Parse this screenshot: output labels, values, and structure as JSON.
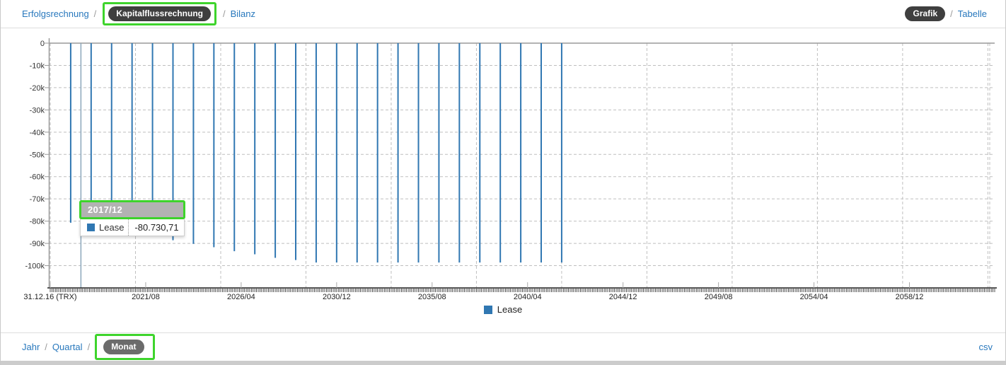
{
  "nav": {
    "separator": "/",
    "items": [
      {
        "label": "Erfolgsrechnung",
        "active": false
      },
      {
        "label": "Kapitalflussrechnung",
        "active": true
      },
      {
        "label": "Bilanz",
        "active": false
      }
    ],
    "view_toggle": [
      {
        "label": "Grafik",
        "active": true
      },
      {
        "label": "Tabelle",
        "active": false
      }
    ]
  },
  "chart_data": {
    "type": "bar",
    "title": "",
    "series": [
      {
        "name": "Lease",
        "color": "#3077b2",
        "categories": [
          "2017/12",
          "2018/12",
          "2019/12",
          "2020/12",
          "2021/12",
          "2022/12",
          "2023/12",
          "2024/12",
          "2025/12",
          "2026/12",
          "2027/12",
          "2028/12",
          "2029/12",
          "2030/12",
          "2031/12",
          "2032/12",
          "2033/12",
          "2034/12",
          "2035/12",
          "2036/12",
          "2037/12",
          "2038/12",
          "2039/12",
          "2040/12",
          "2041/12"
        ],
        "values": [
          -80730.71,
          -82150,
          -83600,
          -85100,
          -86800,
          -88600,
          -90200,
          -91700,
          -93500,
          -94900,
          -96500,
          -97500,
          -98600,
          -98600,
          -98600,
          -98600,
          -98600,
          -98600,
          -98600,
          -98600,
          -98600,
          -98600,
          -98600,
          -98600,
          -98600
        ]
      }
    ],
    "x_axis": {
      "start_month": "2016/12",
      "tick_labels": [
        {
          "label": "31.12.16 (TRX)",
          "month": 0
        },
        {
          "label": "2021/08",
          "month": 56
        },
        {
          "label": "2026/04",
          "month": 112
        },
        {
          "label": "2030/12",
          "month": 168
        },
        {
          "label": "2035/08",
          "month": 224
        },
        {
          "label": "2040/04",
          "month": 280
        },
        {
          "label": "2044/12",
          "month": 336
        },
        {
          "label": "2049/08",
          "month": 392
        },
        {
          "label": "2054/04",
          "month": 448
        },
        {
          "label": "2058/12",
          "month": 504
        }
      ],
      "minor_tick_unit": "month",
      "gridline_month_interval": 50,
      "total_months": 554
    },
    "y_axis": {
      "tick_labels": [
        "0",
        "-10k",
        "-20k",
        "-30k",
        "-40k",
        "-50k",
        "-60k",
        "-70k",
        "-80k",
        "-90k",
        "-100k"
      ],
      "tick_values": [
        0,
        -10000,
        -20000,
        -30000,
        -40000,
        -50000,
        -60000,
        -70000,
        -80000,
        -90000,
        -100000
      ],
      "min": -110000,
      "max": 0
    },
    "marker_line_month": 18,
    "grid": true,
    "legend": {
      "items": [
        {
          "label": "Lease",
          "color": "#3077b2"
        }
      ],
      "position": "bottom-center"
    }
  },
  "tooltip": {
    "header": "2017/12",
    "series": "Lease",
    "value": "-80.730,71"
  },
  "granularity": {
    "separator": "/",
    "items": [
      {
        "label": "Jahr",
        "active": false
      },
      {
        "label": "Quartal",
        "active": false
      },
      {
        "label": "Monat",
        "active": true
      }
    ]
  },
  "export": {
    "csv_label": "csv"
  },
  "colors": {
    "link": "#2878bd",
    "bar": "#3077b2",
    "annotation_green": "#3ed42c",
    "pill_dark": "#3f3f3f",
    "pill_grey": "#6b6b6b",
    "tooltip_header_bg": "#b2b2b2"
  }
}
